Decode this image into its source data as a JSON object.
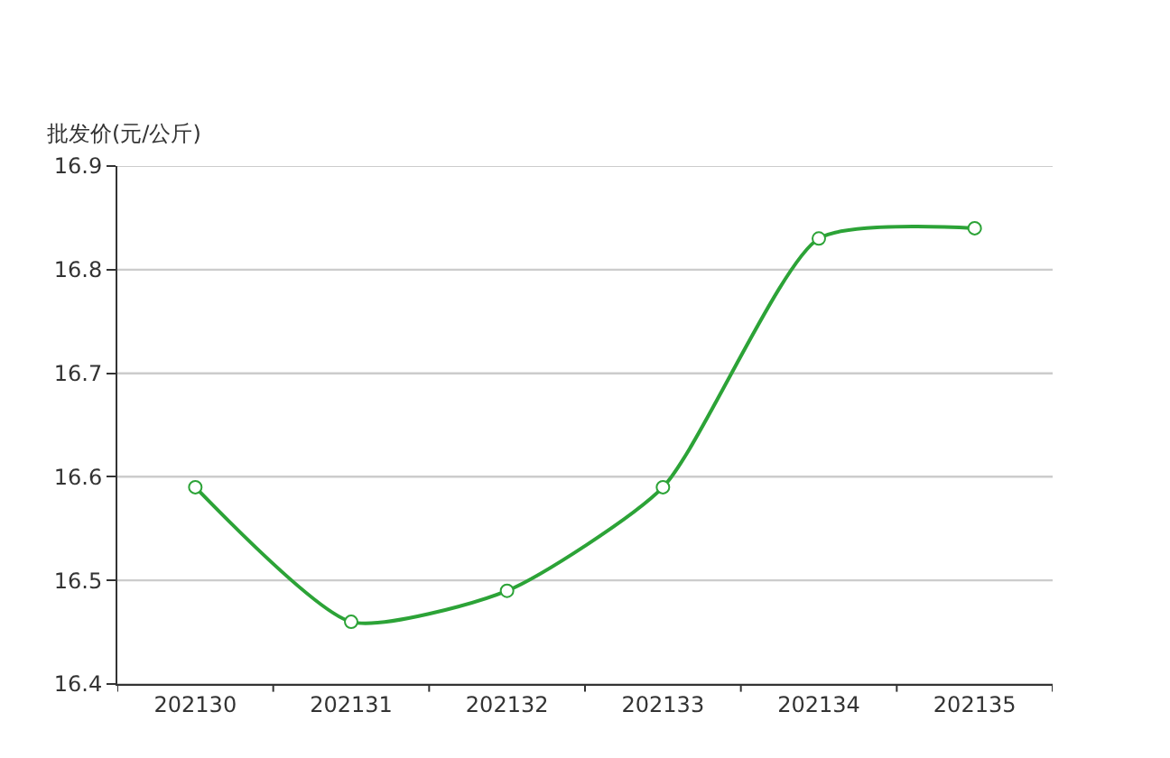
{
  "chart_data": {
    "type": "line",
    "ylabel": "批发价(元/公斤)",
    "categories": [
      "202130",
      "202131",
      "202132",
      "202133",
      "202134",
      "202135"
    ],
    "series": [
      {
        "color": "#2ca337",
        "values": [
          16.59,
          16.46,
          16.49,
          16.59,
          16.83,
          16.84
        ]
      }
    ],
    "ylim": [
      16.4,
      16.9
    ],
    "yticks": [
      16.4,
      16.5,
      16.6,
      16.7,
      16.8,
      16.9
    ],
    "grid": "y",
    "marker": "circle",
    "line_style": "solid"
  }
}
